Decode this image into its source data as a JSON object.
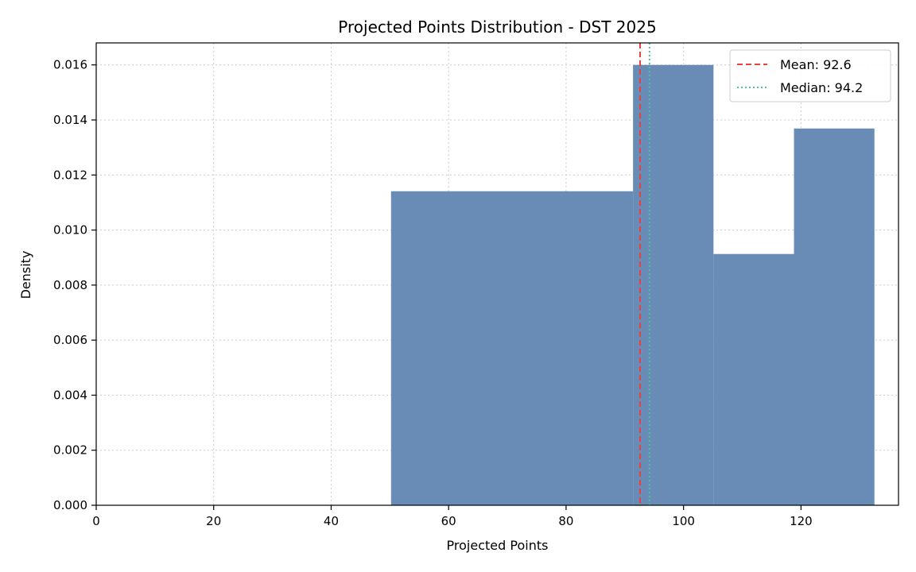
{
  "chart_data": {
    "type": "bar",
    "title": "Projected Points Distribution - DST 2025",
    "xlabel": "Projected Points",
    "ylabel": "Density",
    "xlim": [
      0,
      136.6
    ],
    "ylim": [
      0,
      0.0168
    ],
    "xticks": [
      0,
      20,
      40,
      60,
      80,
      100,
      120
    ],
    "yticks": [
      0.0,
      0.002,
      0.004,
      0.006,
      0.008,
      0.01,
      0.012,
      0.014,
      0.016
    ],
    "grid": true,
    "legend_position": "top-right",
    "bins": [
      {
        "x0": 50.2,
        "x1": 91.4,
        "density": 0.01141
      },
      {
        "x0": 91.4,
        "x1": 105.1,
        "density": 0.016
      },
      {
        "x0": 105.1,
        "x1": 118.8,
        "density": 0.00913
      },
      {
        "x0": 118.8,
        "x1": 132.5,
        "density": 0.01369
      }
    ],
    "reference_lines": [
      {
        "name": "Mean: 92.6",
        "value": 92.6,
        "color": "#e8413f",
        "style": "dashed"
      },
      {
        "name": "Median: 94.2",
        "value": 94.2,
        "color": "#52bfa0",
        "style": "dotted"
      }
    ],
    "bar_color": "#688cb5"
  }
}
